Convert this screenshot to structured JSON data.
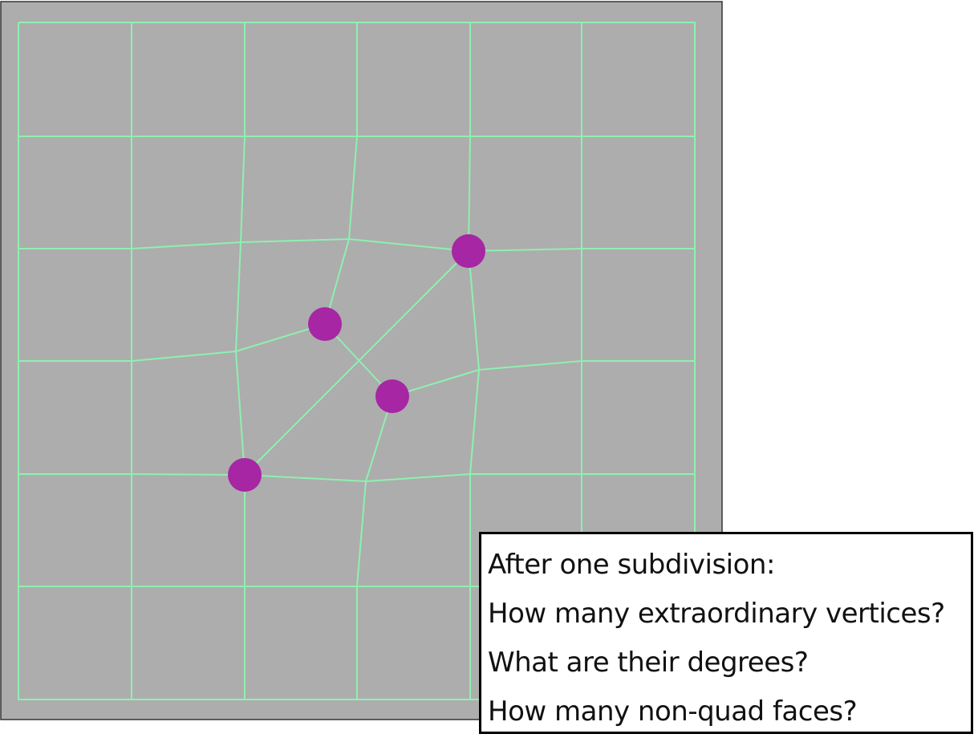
{
  "diagram": {
    "colors": {
      "background": "#adadad",
      "mesh_line": "#8ef0b0",
      "extraordinary_vertex": "#a626a4",
      "frame": "#333333"
    },
    "vertex_count_extraordinary": 4
  },
  "question_box": {
    "lines": [
      "After one subdivision:",
      "How many extraordinary vertices?",
      "What are their degrees?",
      "How many non-quad faces?"
    ]
  }
}
